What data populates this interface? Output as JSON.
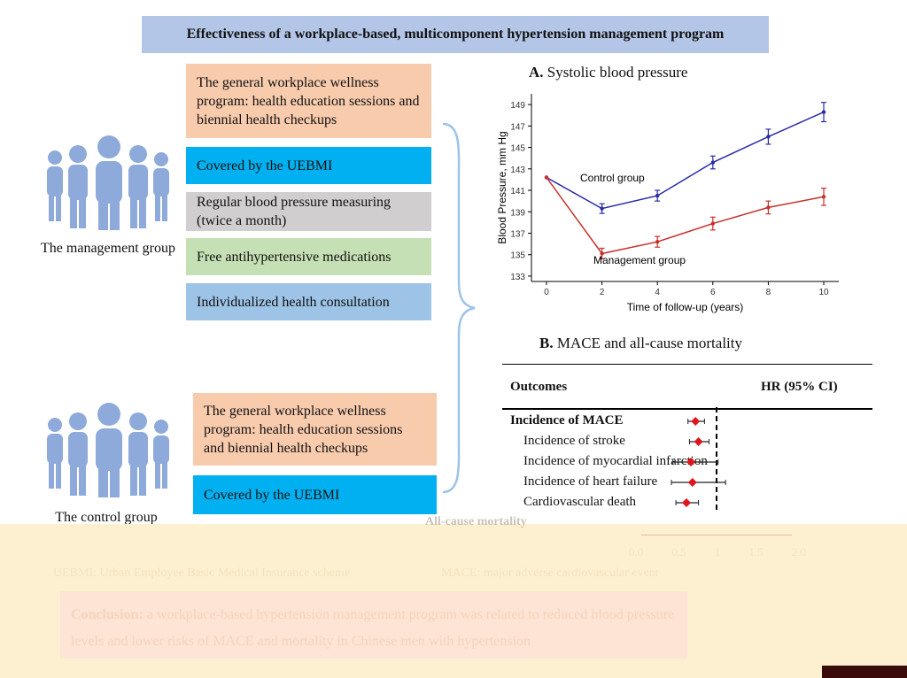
{
  "title": "Effectiveness of a workplace-based, multicomponent hypertension management program",
  "management": {
    "label": "The management group",
    "boxes": [
      "The general workplace wellness program: health education sessions and biennial health checkups",
      "Covered by the UEBMI",
      "Regular blood pressure measuring (twice a month)",
      "Free antihypertensive medications",
      "Individualized health consultation"
    ]
  },
  "control": {
    "label": "The control group",
    "boxes": [
      "The general workplace wellness program: health education sessions and biennial health checkups",
      "Covered by the UEBMI"
    ]
  },
  "panelA": {
    "letter": "A.",
    "title": "Systolic blood pressure"
  },
  "panelB": {
    "letter": "B.",
    "title": "MACE and all-cause mortality",
    "col_outcomes": "Outcomes",
    "col_hr": "HR (95% CI)",
    "rows": [
      {
        "label": "Incidence of MACE",
        "bold": true
      },
      {
        "label": "Incidence of stroke",
        "bold": false
      },
      {
        "label": "Incidence of myocardial infarction",
        "bold": false
      },
      {
        "label": "Incidence of heart failure",
        "bold": false
      },
      {
        "label": "Cardiovascular death",
        "bold": false
      },
      {
        "label": "All-cause mortality",
        "bold": true
      }
    ],
    "axis_ticks": [
      "0.0",
      "0.5",
      "1",
      "1.5",
      "2.0"
    ],
    "hr_values": [
      {
        "hr": 0.72,
        "lo": 0.62,
        "hi": 0.84
      },
      {
        "hr": 0.76,
        "lo": 0.64,
        "hi": 0.9
      },
      {
        "hr": 0.66,
        "lo": 0.42,
        "hi": 1.02
      },
      {
        "hr": 0.68,
        "lo": 0.4,
        "hi": 1.12
      },
      {
        "hr": 0.6,
        "lo": 0.46,
        "hi": 0.76
      },
      {
        "hr": 0.7,
        "lo": 0.58,
        "hi": 0.84
      }
    ]
  },
  "footnote_left": "UEBMI: Urban Employee Basic Medical Insurance scheme",
  "footnote_right": "MACE: major adverse cardiovascular event",
  "conclusion_label": "Conclusion:",
  "conclusion_text": " a workplace-based hypertension management program was related to reduced blood pressure levels and lower risks of MACE and mortality in Chinese men with hypertension",
  "colors": {
    "control": "#2a2aa8",
    "management": "#c8302a",
    "forest_marker": "#e0141e"
  },
  "chart_data": {
    "type": "line",
    "xlabel": "Time of follow-up (years)",
    "ylabel": "Blood Pressure, mm Hg",
    "x": [
      0,
      2,
      4,
      6,
      8,
      10
    ],
    "xticks": [
      "0",
      "2",
      "4",
      "6",
      "8",
      "10"
    ],
    "yticks": [
      "133",
      "135",
      "137",
      "139",
      "141",
      "143",
      "145",
      "147",
      "149"
    ],
    "xlim": [
      0,
      10
    ],
    "ylim": [
      132.5,
      150
    ],
    "series": [
      {
        "name": "Control group",
        "values": [
          142.2,
          139.3,
          140.5,
          143.6,
          146.0,
          148.3
        ],
        "err": [
          0,
          0.45,
          0.5,
          0.6,
          0.7,
          0.9
        ]
      },
      {
        "name": "Management group",
        "values": [
          142.2,
          135.1,
          136.2,
          137.9,
          139.4,
          140.4
        ],
        "err": [
          0,
          0.5,
          0.5,
          0.6,
          0.6,
          0.8
        ]
      }
    ],
    "grid": false
  }
}
